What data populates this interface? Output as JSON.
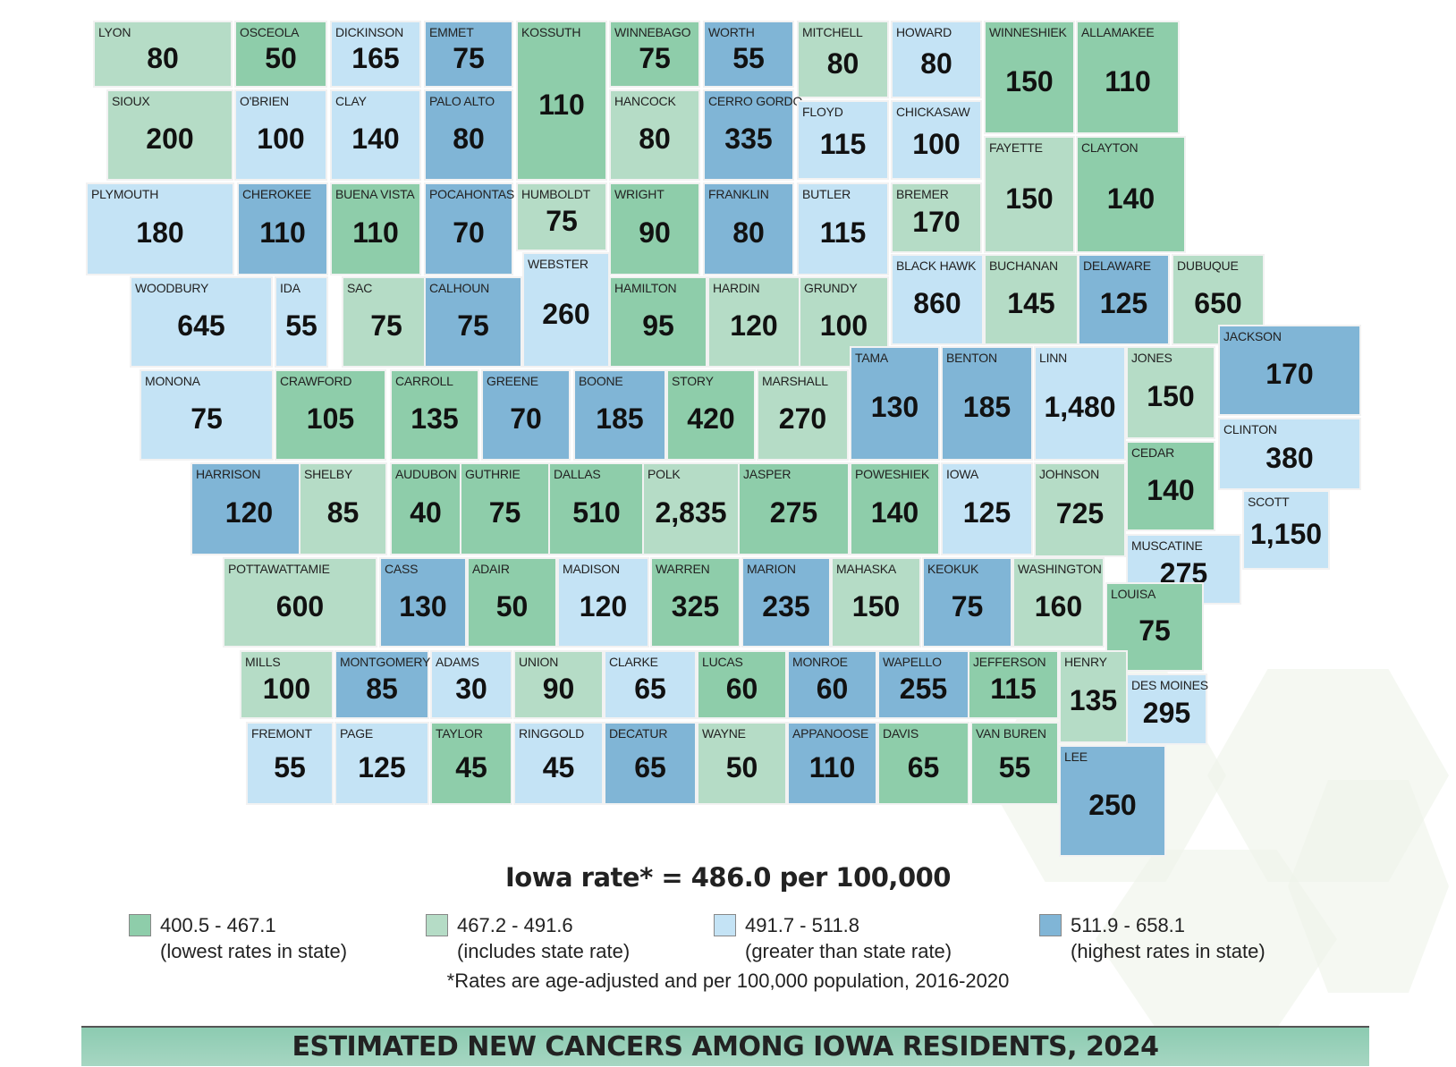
{
  "colors": {
    "lowest": "#8ecdaa",
    "includes": "#b5dcc6",
    "greater": "#c4e3f5",
    "highest": "#80b5d6"
  },
  "counties": [
    {
      "name": "LYON",
      "value": "80",
      "cat": "includes"
    },
    {
      "name": "OSCEOLA",
      "value": "50",
      "cat": "lowest"
    },
    {
      "name": "DICKINSON",
      "value": "165",
      "cat": "greater"
    },
    {
      "name": "EMMET",
      "value": "75",
      "cat": "highest"
    },
    {
      "name": "KOSSUTH",
      "value": "110",
      "cat": "lowest"
    },
    {
      "name": "WINNEBAGO",
      "value": "75",
      "cat": "lowest"
    },
    {
      "name": "WORTH",
      "value": "55",
      "cat": "highest"
    },
    {
      "name": "MITCHELL",
      "value": "80",
      "cat": "includes"
    },
    {
      "name": "HOWARD",
      "value": "80",
      "cat": "greater"
    },
    {
      "name": "WINNESHIEK",
      "value": "150",
      "cat": "lowest"
    },
    {
      "name": "ALLAMAKEE",
      "value": "110",
      "cat": "lowest"
    },
    {
      "name": "SIOUX",
      "value": "200",
      "cat": "includes"
    },
    {
      "name": "O'BRIEN",
      "value": "100",
      "cat": "greater"
    },
    {
      "name": "CLAY",
      "value": "140",
      "cat": "greater"
    },
    {
      "name": "PALO ALTO",
      "value": "80",
      "cat": "highest"
    },
    {
      "name": "HANCOCK",
      "value": "80",
      "cat": "includes"
    },
    {
      "name": "CERRO GORDO",
      "value": "335",
      "cat": "highest"
    },
    {
      "name": "FLOYD",
      "value": "115",
      "cat": "greater"
    },
    {
      "name": "CHICKASAW",
      "value": "100",
      "cat": "greater"
    },
    {
      "name": "FAYETTE",
      "value": "150",
      "cat": "includes"
    },
    {
      "name": "CLAYTON",
      "value": "140",
      "cat": "lowest"
    },
    {
      "name": "PLYMOUTH",
      "value": "180",
      "cat": "greater"
    },
    {
      "name": "CHEROKEE",
      "value": "110",
      "cat": "highest"
    },
    {
      "name": "BUENA VISTA",
      "value": "110",
      "cat": "lowest"
    },
    {
      "name": "POCAHONTAS",
      "value": "70",
      "cat": "highest"
    },
    {
      "name": "HUMBOLDT",
      "value": "75",
      "cat": "includes"
    },
    {
      "name": "WRIGHT",
      "value": "90",
      "cat": "lowest"
    },
    {
      "name": "FRANKLIN",
      "value": "80",
      "cat": "highest"
    },
    {
      "name": "BUTLER",
      "value": "115",
      "cat": "greater"
    },
    {
      "name": "BREMER",
      "value": "170",
      "cat": "includes"
    },
    {
      "name": "WOODBURY",
      "value": "645",
      "cat": "greater"
    },
    {
      "name": "IDA",
      "value": "55",
      "cat": "greater"
    },
    {
      "name": "SAC",
      "value": "75",
      "cat": "includes"
    },
    {
      "name": "CALHOUN",
      "value": "75",
      "cat": "highest"
    },
    {
      "name": "WEBSTER",
      "value": "260",
      "cat": "greater"
    },
    {
      "name": "HAMILTON",
      "value": "95",
      "cat": "lowest"
    },
    {
      "name": "HARDIN",
      "value": "120",
      "cat": "includes"
    },
    {
      "name": "GRUNDY",
      "value": "100",
      "cat": "includes"
    },
    {
      "name": "BLACK HAWK",
      "value": "860",
      "cat": "greater"
    },
    {
      "name": "BUCHANAN",
      "value": "145",
      "cat": "includes"
    },
    {
      "name": "DELAWARE",
      "value": "125",
      "cat": "highest"
    },
    {
      "name": "DUBUQUE",
      "value": "650",
      "cat": "includes"
    },
    {
      "name": "MONONA",
      "value": "75",
      "cat": "greater"
    },
    {
      "name": "CRAWFORD",
      "value": "105",
      "cat": "lowest"
    },
    {
      "name": "CARROLL",
      "value": "135",
      "cat": "lowest"
    },
    {
      "name": "GREENE",
      "value": "70",
      "cat": "highest"
    },
    {
      "name": "BOONE",
      "value": "185",
      "cat": "highest"
    },
    {
      "name": "STORY",
      "value": "420",
      "cat": "lowest"
    },
    {
      "name": "MARSHALL",
      "value": "270",
      "cat": "includes"
    },
    {
      "name": "TAMA",
      "value": "130",
      "cat": "highest"
    },
    {
      "name": "BENTON",
      "value": "185",
      "cat": "highest"
    },
    {
      "name": "LINN",
      "value": "1,480",
      "cat": "greater"
    },
    {
      "name": "JONES",
      "value": "150",
      "cat": "includes"
    },
    {
      "name": "JACKSON",
      "value": "170",
      "cat": "highest"
    },
    {
      "name": "HARRISON",
      "value": "120",
      "cat": "highest"
    },
    {
      "name": "SHELBY",
      "value": "85",
      "cat": "includes"
    },
    {
      "name": "AUDUBON",
      "value": "40",
      "cat": "lowest"
    },
    {
      "name": "GUTHRIE",
      "value": "75",
      "cat": "lowest"
    },
    {
      "name": "DALLAS",
      "value": "510",
      "cat": "lowest"
    },
    {
      "name": "POLK",
      "value": "2,835",
      "cat": "includes"
    },
    {
      "name": "JASPER",
      "value": "275",
      "cat": "lowest"
    },
    {
      "name": "POWESHIEK",
      "value": "140",
      "cat": "lowest"
    },
    {
      "name": "IOWA",
      "value": "125",
      "cat": "greater"
    },
    {
      "name": "JOHNSON",
      "value": "725",
      "cat": "includes"
    },
    {
      "name": "CEDAR",
      "value": "140",
      "cat": "lowest"
    },
    {
      "name": "CLINTON",
      "value": "380",
      "cat": "greater"
    },
    {
      "name": "SCOTT",
      "value": "1,150",
      "cat": "greater"
    },
    {
      "name": "MUSCATINE",
      "value": "275",
      "cat": "greater"
    },
    {
      "name": "POTTAWATTAMIE",
      "value": "600",
      "cat": "includes"
    },
    {
      "name": "CASS",
      "value": "130",
      "cat": "highest"
    },
    {
      "name": "ADAIR",
      "value": "50",
      "cat": "lowest"
    },
    {
      "name": "MADISON",
      "value": "120",
      "cat": "greater"
    },
    {
      "name": "WARREN",
      "value": "325",
      "cat": "lowest"
    },
    {
      "name": "MARION",
      "value": "235",
      "cat": "highest"
    },
    {
      "name": "MAHASKA",
      "value": "150",
      "cat": "includes"
    },
    {
      "name": "KEOKUK",
      "value": "75",
      "cat": "highest"
    },
    {
      "name": "WASHINGTON",
      "value": "160",
      "cat": "includes"
    },
    {
      "name": "LOUISA",
      "value": "75",
      "cat": "lowest"
    },
    {
      "name": "MILLS",
      "value": "100",
      "cat": "includes"
    },
    {
      "name": "MONTGOMERY",
      "value": "85",
      "cat": "highest"
    },
    {
      "name": "ADAMS",
      "value": "30",
      "cat": "greater"
    },
    {
      "name": "UNION",
      "value": "90",
      "cat": "includes"
    },
    {
      "name": "CLARKE",
      "value": "65",
      "cat": "greater"
    },
    {
      "name": "LUCAS",
      "value": "60",
      "cat": "lowest"
    },
    {
      "name": "MONROE",
      "value": "60",
      "cat": "highest"
    },
    {
      "name": "WAPELLO",
      "value": "255",
      "cat": "highest"
    },
    {
      "name": "JEFFERSON",
      "value": "115",
      "cat": "lowest"
    },
    {
      "name": "HENRY",
      "value": "135",
      "cat": "includes"
    },
    {
      "name": "DES MOINES",
      "value": "295",
      "cat": "greater"
    },
    {
      "name": "FREMONT",
      "value": "55",
      "cat": "greater"
    },
    {
      "name": "PAGE",
      "value": "125",
      "cat": "greater"
    },
    {
      "name": "TAYLOR",
      "value": "45",
      "cat": "lowest"
    },
    {
      "name": "RINGGOLD",
      "value": "45",
      "cat": "greater"
    },
    {
      "name": "DECATUR",
      "value": "65",
      "cat": "highest"
    },
    {
      "name": "WAYNE",
      "value": "50",
      "cat": "includes"
    },
    {
      "name": "APPANOOSE",
      "value": "110",
      "cat": "highest"
    },
    {
      "name": "DAVIS",
      "value": "65",
      "cat": "lowest"
    },
    {
      "name": "VAN BUREN",
      "value": "55",
      "cat": "lowest"
    },
    {
      "name": "LEE",
      "value": "250",
      "cat": "highest"
    }
  ],
  "state_rate": "Iowa rate* = 486.0 per 100,000",
  "legend": [
    {
      "range": "400.5 - 467.1",
      "desc": "(lowest rates in state)",
      "cat": "lowest"
    },
    {
      "range": "467.2 - 491.6",
      "desc": "(includes state rate)",
      "cat": "includes"
    },
    {
      "range": "491.7 - 511.8",
      "desc": "(greater than state rate)",
      "cat": "greater"
    },
    {
      "range": "511.9 - 658.1",
      "desc": "(highest rates in state)",
      "cat": "highest"
    }
  ],
  "footnote": "*Rates are age-adjusted and per 100,000 population, 2016-2020",
  "banner": "ESTIMATED NEW CANCERS AMONG IOWA RESIDENTS, 2024"
}
